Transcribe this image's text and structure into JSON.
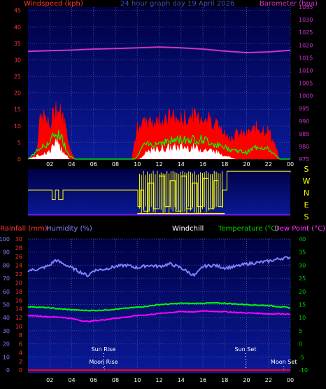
{
  "header": {
    "windspeed_label": "Windspeed (kph)",
    "date_label": "24 hour graph day  19 April 2026",
    "barometer_label": "Barometer (hpa)"
  },
  "labels": {
    "rainfall": "Rainfall (mm)",
    "humidity": "Humidity (%)",
    "windchill": "Windchill",
    "temperature": "Temperature (°C)",
    "dewpoint": "Dew Point (°C)",
    "sun_rise": "Sun Rise",
    "sun_set": "Sun Set",
    "moon_rise": "Moon Rise",
    "moon_set": "Moon Set"
  },
  "colors": {
    "panel_top": "#000044",
    "panel_bottom": "#0a1a9a",
    "grid": "#3a4a9a",
    "wind_gust": "#ff0000",
    "wind_avg": "#00ff00",
    "wind_low": "#ffffff",
    "barometer": "#cc33cc",
    "direction": "#ffff00",
    "humidity": "#8080ff",
    "temperature": "#00ff00",
    "dewpoint": "#ff00ff",
    "rainfall": "#ff0000",
    "axis_temp": "#00cc00",
    "axis_wind": "#ff3333",
    "axis_baro": "#cc33cc",
    "axis_hum": "#8080ff"
  },
  "chart_data": [
    {
      "type": "area",
      "name": "wind-barometer",
      "title": "24 hour graph day  19 April 2026",
      "ylabel": "Windspeed (kph)",
      "y2label": "Barometer (hpa)",
      "ylim": [
        0,
        46
      ],
      "y2lim": [
        975,
        1035
      ],
      "y_ticks": [
        "0",
        "5",
        "10",
        "15",
        "20",
        "25",
        "30",
        "35",
        "40",
        "45"
      ],
      "y2_ticks": [
        "975",
        "980",
        "985",
        "990",
        "995",
        "1000",
        "1005",
        "1010",
        "1015",
        "1020",
        "1025",
        "1030",
        "1035"
      ],
      "x_ticks": [
        "02",
        "04",
        "06",
        "08",
        "10",
        "12",
        "14",
        "16",
        "18",
        "20",
        "22",
        "00"
      ],
      "x_hours": [
        2,
        4,
        6,
        8,
        10,
        12,
        14,
        16,
        18,
        20,
        22,
        24
      ],
      "xlim": [
        0,
        24
      ],
      "gust_profile": [
        [
          0,
          0
        ],
        [
          0.8,
          2
        ],
        [
          1.0,
          10
        ],
        [
          1.5,
          12
        ],
        [
          2.0,
          9
        ],
        [
          2.5,
          15
        ],
        [
          3.0,
          13
        ],
        [
          3.5,
          9
        ],
        [
          3.8,
          3
        ],
        [
          4.3,
          0
        ],
        [
          9.5,
          0
        ],
        [
          10,
          9
        ],
        [
          11,
          10
        ],
        [
          12,
          11
        ],
        [
          13,
          12
        ],
        [
          14,
          11
        ],
        [
          15,
          12
        ],
        [
          16,
          12
        ],
        [
          17,
          11
        ],
        [
          17.7,
          8
        ],
        [
          18.2,
          6
        ],
        [
          19,
          7
        ],
        [
          20,
          7
        ],
        [
          21,
          9
        ],
        [
          22,
          8
        ],
        [
          22.6,
          4
        ],
        [
          23.0,
          0
        ],
        [
          24,
          0
        ]
      ],
      "avg_profile": [
        [
          0,
          0
        ],
        [
          1.0,
          3
        ],
        [
          2.0,
          5
        ],
        [
          2.5,
          8
        ],
        [
          3.0,
          7
        ],
        [
          3.8,
          1
        ],
        [
          4.3,
          0
        ],
        [
          9.8,
          0
        ],
        [
          10.5,
          4
        ],
        [
          12,
          5
        ],
        [
          14,
          6
        ],
        [
          16,
          6
        ],
        [
          17.5,
          4
        ],
        [
          18.5,
          3
        ],
        [
          20,
          2
        ],
        [
          21,
          4
        ],
        [
          22,
          3
        ],
        [
          23,
          0
        ],
        [
          24,
          0
        ]
      ],
      "low_profile": [
        [
          0,
          0
        ],
        [
          2.0,
          2
        ],
        [
          2.5,
          4
        ],
        [
          3.0,
          3
        ],
        [
          3.8,
          0
        ],
        [
          10.2,
          0
        ],
        [
          11,
          2
        ],
        [
          13,
          3
        ],
        [
          15,
          3
        ],
        [
          17,
          2
        ],
        [
          18,
          1
        ],
        [
          19,
          0
        ],
        [
          24,
          0
        ]
      ],
      "barometer": [
        [
          0,
          1017.5
        ],
        [
          2,
          1017.8
        ],
        [
          4,
          1018.0
        ],
        [
          6,
          1018.4
        ],
        [
          8,
          1018.6
        ],
        [
          10,
          1018.9
        ],
        [
          12,
          1019.2
        ],
        [
          14,
          1018.9
        ],
        [
          16,
          1018.4
        ],
        [
          18,
          1017.6
        ],
        [
          20,
          1017.0
        ],
        [
          22,
          1017.3
        ],
        [
          24,
          1017.9
        ]
      ]
    },
    {
      "type": "line",
      "name": "wind-direction",
      "y_ticks": [
        "S",
        "E",
        "N",
        "W",
        "S"
      ],
      "step": [
        [
          0,
          0.55
        ],
        [
          2.0,
          0.55
        ],
        [
          2.2,
          0.35
        ],
        [
          2.5,
          0.55
        ],
        [
          2.8,
          0.35
        ],
        [
          3.2,
          0.55
        ],
        [
          8.0,
          0.55
        ],
        [
          9.9,
          0.55
        ],
        [
          10.05,
          0.2
        ],
        [
          10.3,
          0.55
        ],
        [
          10.6,
          0.1
        ],
        [
          11.0,
          0.7
        ],
        [
          11.5,
          0.15
        ],
        [
          12.0,
          0.85
        ],
        [
          12.5,
          0.2
        ],
        [
          13.0,
          0.75
        ],
        [
          13.5,
          0.1
        ],
        [
          14.0,
          0.85
        ],
        [
          14.5,
          0.15
        ],
        [
          15.0,
          0.7
        ],
        [
          15.5,
          0.2
        ],
        [
          16.0,
          0.8
        ],
        [
          16.5,
          0.15
        ],
        [
          17.0,
          0.75
        ],
        [
          17.4,
          0.2
        ],
        [
          17.8,
          0.55
        ],
        [
          18.2,
          0.95
        ],
        [
          18.4,
          0.95
        ],
        [
          20,
          0.95
        ],
        [
          22,
          0.95
        ],
        [
          24,
          0.93
        ]
      ]
    },
    {
      "type": "line",
      "name": "temperature-humidity",
      "ylabel_left_outer": "Rainfall (mm)",
      "ylabel_left_inner": "Humidity (%)",
      "ylabel_right_inner": "Temperature (°C)",
      "ylabel_right_outer": "Dew Point (°C)",
      "humidity_ticks": [
        "0",
        "10",
        "20",
        "30",
        "40",
        "50",
        "60",
        "70",
        "80",
        "90",
        "100"
      ],
      "rain_ticks": [
        "0",
        "2",
        "4",
        "6",
        "8",
        "10",
        "12",
        "14",
        "16",
        "18",
        "20",
        "22",
        "24",
        "26",
        "28",
        "30"
      ],
      "temp_ticks": [
        "-10",
        "-5",
        "0",
        "5",
        "10",
        "15",
        "20",
        "25",
        "30",
        "35",
        "40"
      ],
      "humidity_lim": [
        0,
        100
      ],
      "temp_lim": [
        -10,
        40
      ],
      "humidity": [
        [
          0,
          76
        ],
        [
          1,
          77
        ],
        [
          2,
          80
        ],
        [
          2.5,
          84
        ],
        [
          3,
          82
        ],
        [
          4,
          78
        ],
        [
          5,
          74
        ],
        [
          5.5,
          72
        ],
        [
          6,
          76
        ],
        [
          7,
          77
        ],
        [
          8,
          79
        ],
        [
          9,
          80
        ],
        [
          10,
          78
        ],
        [
          11,
          80
        ],
        [
          12,
          79
        ],
        [
          13,
          81
        ],
        [
          14,
          78
        ],
        [
          14.8,
          74
        ],
        [
          15.2,
          72
        ],
        [
          15.6,
          75
        ],
        [
          16,
          79
        ],
        [
          17,
          80
        ],
        [
          18,
          78
        ],
        [
          19,
          79
        ],
        [
          20,
          81
        ],
        [
          21,
          82
        ],
        [
          22,
          83
        ],
        [
          23,
          85
        ],
        [
          24,
          86
        ]
      ],
      "temperature": [
        [
          0,
          14.2
        ],
        [
          1,
          14.0
        ],
        [
          2,
          13.7
        ],
        [
          3,
          13.3
        ],
        [
          4,
          13.0
        ],
        [
          5,
          12.8
        ],
        [
          6,
          12.7
        ],
        [
          7,
          12.9
        ],
        [
          8,
          13.2
        ],
        [
          9,
          13.6
        ],
        [
          10,
          14.0
        ],
        [
          11,
          14.4
        ],
        [
          12,
          15.0
        ],
        [
          13,
          15.2
        ],
        [
          14,
          15.5
        ],
        [
          15,
          15.4
        ],
        [
          16,
          15.5
        ],
        [
          17,
          15.6
        ],
        [
          18,
          15.5
        ],
        [
          19,
          15.2
        ],
        [
          20,
          15.0
        ],
        [
          21,
          14.8
        ],
        [
          22,
          14.6
        ],
        [
          23,
          14.2
        ],
        [
          24,
          13.7
        ]
      ],
      "dewpoint": [
        [
          0,
          10.8
        ],
        [
          1,
          10.6
        ],
        [
          2,
          10.3
        ],
        [
          3,
          10.2
        ],
        [
          4,
          9.6
        ],
        [
          5,
          8.8
        ],
        [
          5.5,
          8.5
        ],
        [
          6,
          8.8
        ],
        [
          7,
          9.2
        ],
        [
          8,
          9.8
        ],
        [
          9,
          10.2
        ],
        [
          10,
          10.8
        ],
        [
          11,
          11.1
        ],
        [
          12,
          11.6
        ],
        [
          13,
          12.0
        ],
        [
          14,
          12.3
        ],
        [
          15,
          12.2
        ],
        [
          16,
          12.5
        ],
        [
          17,
          12.4
        ],
        [
          18,
          12.3
        ],
        [
          19,
          12.0
        ],
        [
          20,
          11.8
        ],
        [
          21,
          11.7
        ],
        [
          22,
          11.4
        ],
        [
          23,
          11.5
        ],
        [
          24,
          11.3
        ]
      ],
      "rainfall": [
        [
          0,
          0
        ],
        [
          24,
          0
        ]
      ],
      "events": {
        "sun_rise": 6.9,
        "moon_rise": 7.0,
        "sun_set": 19.9,
        "moon_set": 23.4
      }
    }
  ]
}
